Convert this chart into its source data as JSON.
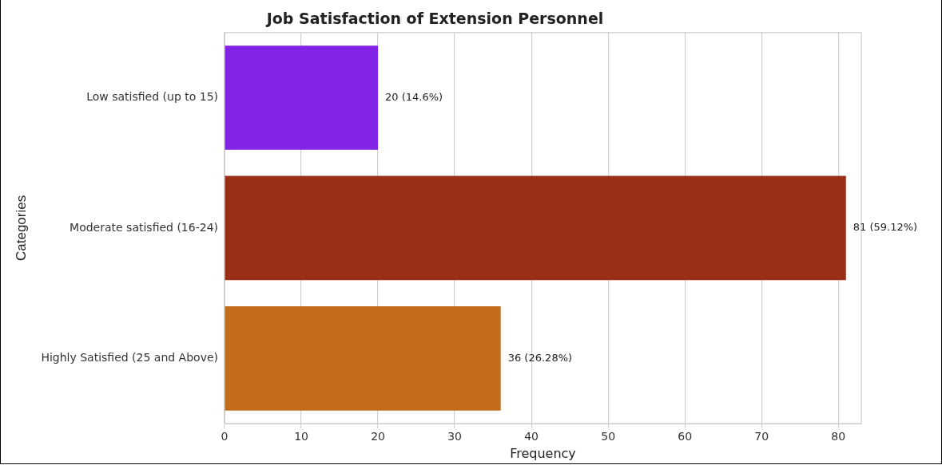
{
  "chart_data": {
    "type": "bar",
    "orientation": "horizontal",
    "title": "Job Satisfaction of Extension Personnel",
    "xlabel": "Frequency",
    "ylabel": "Categories",
    "categories": [
      "Low satisfied (up to 15)",
      "Moderate satisfied (16-24)",
      "Highly Satisfied (25 and Above)"
    ],
    "values": [
      20,
      81,
      36
    ],
    "colors": [
      "#8224e3",
      "#9a2e16",
      "#c26c1c"
    ],
    "value_labels": [
      "20 (14.6%)",
      "81 (59.12%)",
      "36 (26.28%)"
    ],
    "xlim": [
      0,
      83
    ],
    "xticks": [
      0,
      10,
      20,
      30,
      40,
      50,
      60,
      70,
      80
    ],
    "grid": "x",
    "legend": false
  }
}
